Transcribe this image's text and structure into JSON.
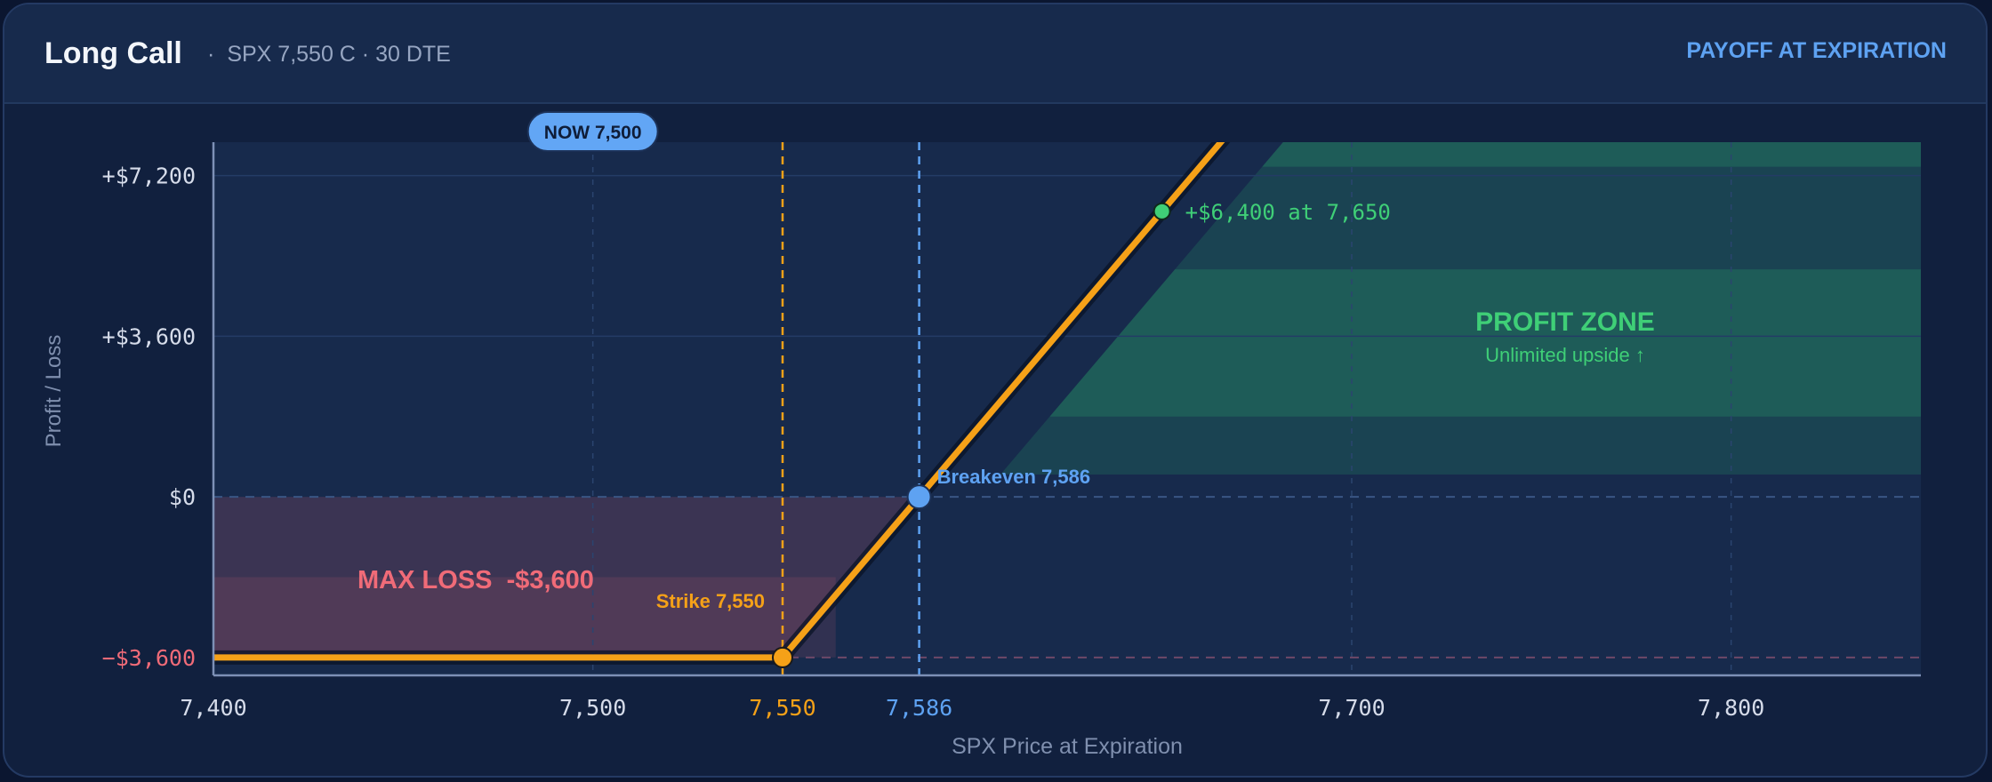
{
  "header": {
    "title": "Long Call",
    "separator": "·",
    "subtitle": "SPX 7,550 C · 30 DTE",
    "mode": "PAYOFF AT EXPIRATION"
  },
  "chart_data": {
    "type": "line",
    "strategy": "Long Call",
    "xlabel": "SPX Price at Expiration",
    "ylabel": "Profit / Loss",
    "xlim": [
      7400,
      7850
    ],
    "ylim": [
      -4000,
      7950
    ],
    "x_ticks": [
      {
        "value": 7400,
        "label": "7,400"
      },
      {
        "value": 7500,
        "label": "7,500"
      },
      {
        "value": 7550,
        "label": "7,550"
      },
      {
        "value": 7586,
        "label": "7,586"
      },
      {
        "value": 7700,
        "label": "7,700"
      },
      {
        "value": 7800,
        "label": "7,800"
      }
    ],
    "y_ticks": [
      {
        "value": -3600,
        "label": "−$3,600"
      },
      {
        "value": 0,
        "label": "$0"
      },
      {
        "value": 3600,
        "label": "+$3,600"
      },
      {
        "value": 7200,
        "label": "+$7,200"
      }
    ],
    "series": [
      {
        "x": [
          7400,
          7550,
          7586,
          7650,
          7670
        ],
        "y": [
          -3600,
          -3600,
          0,
          6400,
          8400
        ]
      }
    ],
    "current_price": {
      "value": 7500,
      "label": "NOW 7,500"
    },
    "strike": {
      "value": 7550,
      "label": "Strike 7,550"
    },
    "breakeven": {
      "value": 7586,
      "label": "Breakeven 7,586"
    },
    "max_loss": {
      "value": -3600,
      "label": "MAX LOSS  -$3,600"
    },
    "marked_point": {
      "x": 7650,
      "y": 6400,
      "label": "+$6,400 at 7,650"
    },
    "profit_zone": {
      "label": "PROFIT ZONE",
      "sublabel": "Unlimited upside ↑"
    },
    "grid": true,
    "colors": {
      "payoff": "#f5a118",
      "breakeven": "#5ea2f2",
      "profit": "#3fcf77",
      "loss": "#f06b78",
      "axis_text": "#d6dcea"
    }
  }
}
